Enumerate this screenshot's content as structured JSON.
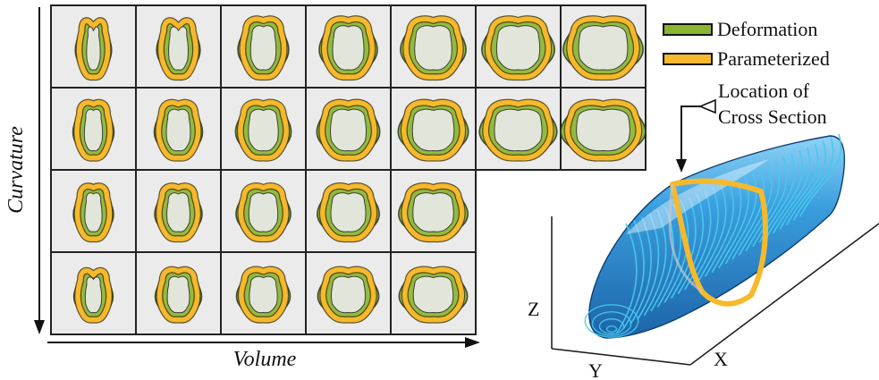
{
  "axes": {
    "vertical_label": "Curvature",
    "horizontal_label": "Volume"
  },
  "grid": {
    "row_counts": [
      7,
      7,
      5,
      5
    ],
    "cell_background": "#ebebeb",
    "cell_border": "#222222"
  },
  "legend": {
    "items": [
      {
        "label": "Deformation",
        "color": "#8ab52e"
      },
      {
        "label": "Parameterized",
        "color": "#f6b92b"
      }
    ]
  },
  "annotation": {
    "line1": "Location of",
    "line2": "Cross Section"
  },
  "model": {
    "axis_z": "Z",
    "axis_y": "Y",
    "axis_x": "X",
    "body_color": "#2f8fd4",
    "contour_color": "#48c8ee",
    "section_color": "#f6b92b"
  }
}
